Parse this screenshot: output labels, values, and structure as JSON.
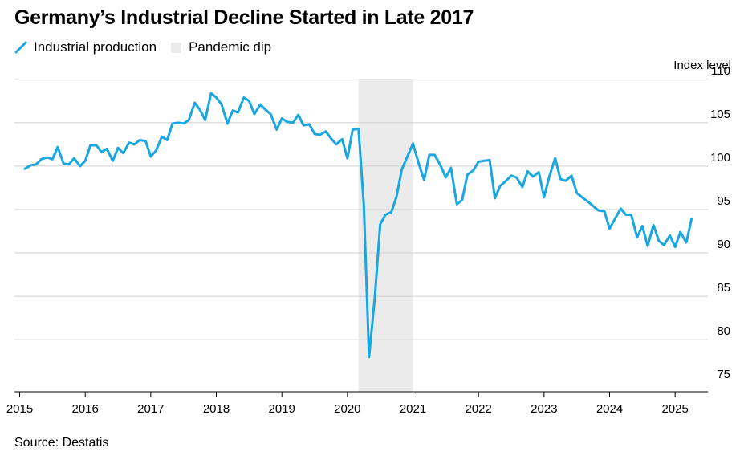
{
  "chart_data": {
    "type": "line",
    "title": "Germany’s Industrial Decline Started in Late 2017",
    "ylabel": "Index level",
    "source": "Source: Destatis",
    "legend": [
      {
        "name": "Industrial production",
        "kind": "line"
      },
      {
        "name": "Pandemic dip",
        "kind": "shade"
      }
    ],
    "ylim": [
      74,
      111
    ],
    "yticks": [
      110,
      105,
      100,
      95,
      90,
      85,
      80,
      75
    ],
    "xlim": [
      2014.92,
      2025.5
    ],
    "xticks": [
      2015,
      2016,
      2017,
      2018,
      2019,
      2020,
      2021,
      2022,
      2023,
      2024,
      2025
    ],
    "shade": {
      "start": 2020.17,
      "end": 2021.0,
      "color": "#ebebeb"
    },
    "colors": {
      "line": "#1aa6e0",
      "grid": "#cfcfcf",
      "axis": "#000000"
    },
    "series": [
      {
        "name": "Industrial production",
        "points": [
          [
            2015.08,
            99.7
          ],
          [
            2015.17,
            100.1
          ],
          [
            2015.25,
            100.2
          ],
          [
            2015.33,
            100.8
          ],
          [
            2015.42,
            101.0
          ],
          [
            2015.5,
            100.8
          ],
          [
            2015.58,
            102.2
          ],
          [
            2015.67,
            100.3
          ],
          [
            2015.75,
            100.2
          ],
          [
            2015.83,
            100.9
          ],
          [
            2015.92,
            100.0
          ],
          [
            2016.0,
            100.6
          ],
          [
            2016.08,
            102.4
          ],
          [
            2016.17,
            102.4
          ],
          [
            2016.25,
            101.6
          ],
          [
            2016.33,
            102.0
          ],
          [
            2016.42,
            100.6
          ],
          [
            2016.5,
            102.1
          ],
          [
            2016.58,
            101.5
          ],
          [
            2016.67,
            102.7
          ],
          [
            2016.75,
            102.5
          ],
          [
            2016.83,
            103.0
          ],
          [
            2016.92,
            102.9
          ],
          [
            2017.0,
            101.1
          ],
          [
            2017.08,
            101.8
          ],
          [
            2017.17,
            103.4
          ],
          [
            2017.25,
            103.0
          ],
          [
            2017.33,
            104.9
          ],
          [
            2017.42,
            105.0
          ],
          [
            2017.5,
            104.9
          ],
          [
            2017.58,
            105.3
          ],
          [
            2017.67,
            107.3
          ],
          [
            2017.75,
            106.5
          ],
          [
            2017.83,
            105.3
          ],
          [
            2017.92,
            108.4
          ],
          [
            2018.0,
            107.9
          ],
          [
            2018.08,
            107.1
          ],
          [
            2018.17,
            104.9
          ],
          [
            2018.25,
            106.4
          ],
          [
            2018.33,
            106.2
          ],
          [
            2018.42,
            107.9
          ],
          [
            2018.5,
            107.5
          ],
          [
            2018.58,
            106.0
          ],
          [
            2018.67,
            107.1
          ],
          [
            2018.75,
            106.5
          ],
          [
            2018.83,
            106.0
          ],
          [
            2018.92,
            104.2
          ],
          [
            2019.0,
            105.5
          ],
          [
            2019.08,
            105.1
          ],
          [
            2019.17,
            105.0
          ],
          [
            2019.25,
            105.9
          ],
          [
            2019.33,
            104.7
          ],
          [
            2019.42,
            104.8
          ],
          [
            2019.5,
            103.7
          ],
          [
            2019.58,
            103.6
          ],
          [
            2019.67,
            104.0
          ],
          [
            2019.75,
            103.2
          ],
          [
            2019.83,
            102.5
          ],
          [
            2019.92,
            103.1
          ],
          [
            2020.0,
            100.9
          ],
          [
            2020.08,
            104.2
          ],
          [
            2020.17,
            104.3
          ],
          [
            2020.25,
            95.5
          ],
          [
            2020.33,
            78.0
          ],
          [
            2020.42,
            85.0
          ],
          [
            2020.5,
            93.3
          ],
          [
            2020.58,
            94.4
          ],
          [
            2020.67,
            94.7
          ],
          [
            2020.75,
            96.5
          ],
          [
            2020.83,
            99.6
          ],
          [
            2020.92,
            101.2
          ],
          [
            2021.0,
            102.6
          ],
          [
            2021.08,
            100.5
          ],
          [
            2021.17,
            98.4
          ],
          [
            2021.25,
            101.3
          ],
          [
            2021.33,
            101.3
          ],
          [
            2021.42,
            100.1
          ],
          [
            2021.5,
            98.7
          ],
          [
            2021.58,
            99.8
          ],
          [
            2021.67,
            95.6
          ],
          [
            2021.75,
            96.1
          ],
          [
            2021.83,
            99.0
          ],
          [
            2021.92,
            99.5
          ],
          [
            2022.0,
            100.5
          ],
          [
            2022.08,
            100.6
          ],
          [
            2022.17,
            100.7
          ],
          [
            2022.25,
            96.3
          ],
          [
            2022.33,
            97.7
          ],
          [
            2022.42,
            98.3
          ],
          [
            2022.5,
            98.9
          ],
          [
            2022.58,
            98.7
          ],
          [
            2022.67,
            97.6
          ],
          [
            2022.75,
            99.4
          ],
          [
            2022.83,
            98.8
          ],
          [
            2022.92,
            99.3
          ],
          [
            2023.0,
            96.4
          ],
          [
            2023.08,
            98.8
          ],
          [
            2023.17,
            100.9
          ],
          [
            2023.25,
            98.5
          ],
          [
            2023.33,
            98.3
          ],
          [
            2023.42,
            98.9
          ],
          [
            2023.5,
            96.9
          ],
          [
            2023.58,
            96.4
          ],
          [
            2023.67,
            95.9
          ],
          [
            2023.75,
            95.4
          ],
          [
            2023.83,
            94.9
          ],
          [
            2023.92,
            94.8
          ],
          [
            2024.0,
            92.8
          ],
          [
            2024.08,
            93.9
          ],
          [
            2024.17,
            95.1
          ],
          [
            2024.25,
            94.4
          ],
          [
            2024.33,
            94.4
          ],
          [
            2024.42,
            91.8
          ],
          [
            2024.5,
            93.1
          ],
          [
            2024.58,
            90.8
          ],
          [
            2024.67,
            93.2
          ],
          [
            2024.75,
            91.4
          ],
          [
            2024.83,
            90.9
          ],
          [
            2024.92,
            92.0
          ],
          [
            2025.0,
            90.7
          ],
          [
            2025.08,
            92.4
          ],
          [
            2025.17,
            91.2
          ],
          [
            2025.25,
            93.9
          ]
        ]
      }
    ]
  }
}
